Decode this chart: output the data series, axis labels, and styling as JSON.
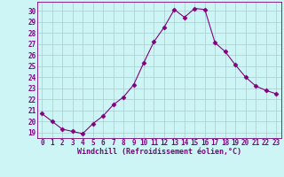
{
  "x": [
    0,
    1,
    2,
    3,
    4,
    5,
    6,
    7,
    8,
    9,
    10,
    11,
    12,
    13,
    14,
    15,
    16,
    17,
    18,
    19,
    20,
    21,
    22,
    23
  ],
  "y": [
    20.7,
    20.0,
    19.3,
    19.1,
    18.9,
    19.8,
    20.5,
    21.5,
    22.2,
    23.3,
    25.3,
    27.2,
    28.5,
    30.1,
    29.4,
    30.2,
    30.1,
    27.1,
    26.3,
    25.1,
    24.0,
    23.2,
    22.8,
    22.5
  ],
  "line_color": "#800080",
  "marker": "D",
  "markersize": 2.5,
  "linewidth": 0.8,
  "bg_color": "#cef5f5",
  "grid_color": "#aacccc",
  "xlabel": "Windchill (Refroidissement éolien,°C)",
  "xlabel_fontsize": 6.0,
  "xlabel_color": "#800080",
  "tick_color": "#800080",
  "tick_fontsize": 5.5,
  "ylim": [
    18.5,
    30.8
  ],
  "yticks": [
    19,
    20,
    21,
    22,
    23,
    24,
    25,
    26,
    27,
    28,
    29,
    30
  ],
  "xticks": [
    0,
    1,
    2,
    3,
    4,
    5,
    6,
    7,
    8,
    9,
    10,
    11,
    12,
    13,
    14,
    15,
    16,
    17,
    18,
    19,
    20,
    21,
    22,
    23
  ]
}
